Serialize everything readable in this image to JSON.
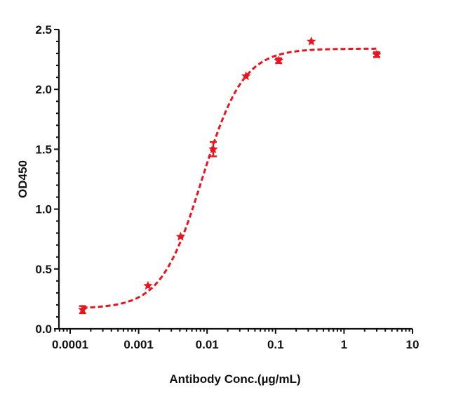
{
  "chart_data": {
    "type": "scatter",
    "title": "",
    "xlabel": "Antibody Conc.(µg/mL)",
    "ylabel": "OD450",
    "xscale": "log",
    "xlim": [
      6e-05,
      10
    ],
    "ylim": [
      0,
      2.5
    ],
    "x_ticks": [
      "0.0001",
      "0.001",
      "0.01",
      "0.1",
      "1",
      "10"
    ],
    "y_ticks": [
      "0.0",
      "0.5",
      "1.0",
      "1.5",
      "2.0",
      "2.5"
    ],
    "grid": false,
    "legend": null,
    "color": "#E8141E",
    "marker": "star",
    "fit_line": "dashed 4-parameter logistic",
    "series": [
      {
        "name": "OD450",
        "x": [
          0.000152,
          0.00137,
          0.0041,
          0.0123,
          0.037,
          0.111,
          0.333,
          3.0
        ],
        "values": [
          0.16,
          0.36,
          0.77,
          1.5,
          2.11,
          2.24,
          2.4,
          2.29
        ],
        "error": [
          0.03,
          0.01,
          0.01,
          0.06,
          0.01,
          0.02,
          0.01,
          0.02
        ]
      }
    ],
    "fit": {
      "bottom": 0.17,
      "top": 2.34,
      "ec50": 0.0085,
      "hill": 1.45
    }
  }
}
